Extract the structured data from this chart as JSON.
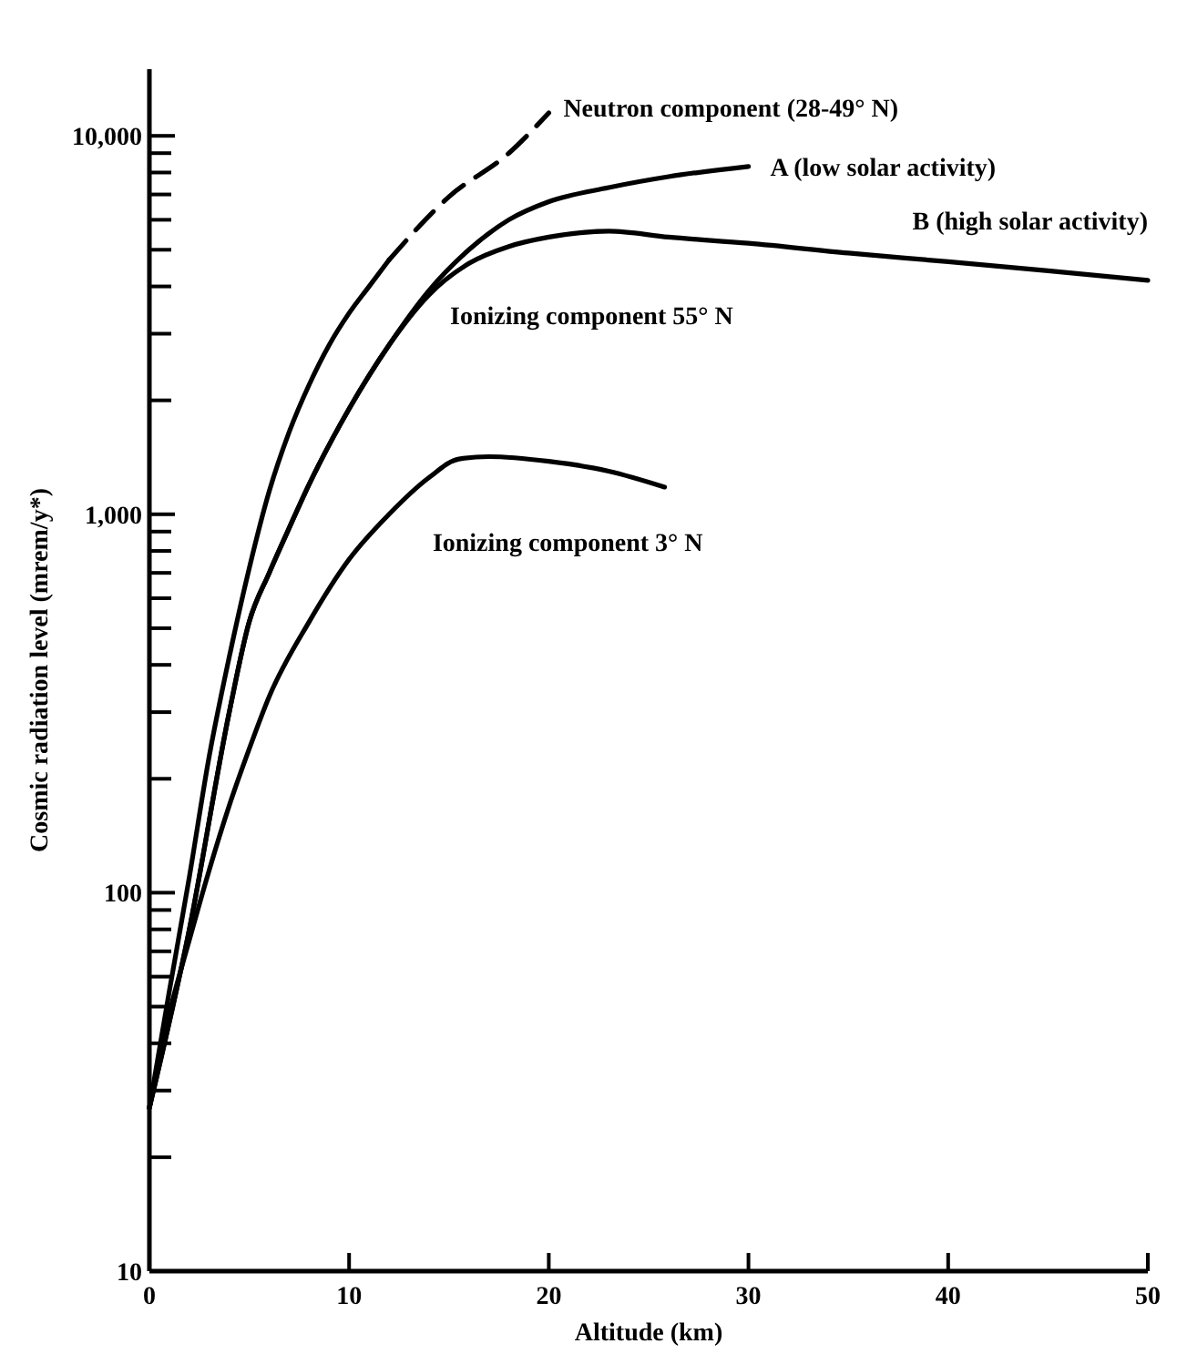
{
  "chart_data": {
    "type": "line",
    "xlabel": "Altitude (km)",
    "ylabel": "Cosmic radiation level (mrem/y*)",
    "log": "y",
    "grid": false,
    "xlim": [
      0,
      50
    ],
    "xticks": [
      0,
      10,
      20,
      30,
      40,
      50
    ],
    "ylim": [
      10,
      15000
    ],
    "yticks": [
      {
        "value": 10,
        "label": "10"
      },
      {
        "value": 20,
        "label": null
      },
      {
        "value": 30,
        "label": null
      },
      {
        "value": 40,
        "label": null
      },
      {
        "value": 50,
        "label": null
      },
      {
        "value": 60,
        "label": null
      },
      {
        "value": 70,
        "label": null
      },
      {
        "value": 80,
        "label": null
      },
      {
        "value": 90,
        "label": null
      },
      {
        "value": 100,
        "label": "100"
      },
      {
        "value": 200,
        "label": null
      },
      {
        "value": 300,
        "label": null
      },
      {
        "value": 400,
        "label": null
      },
      {
        "value": 500,
        "label": null
      },
      {
        "value": 600,
        "label": null
      },
      {
        "value": 700,
        "label": null
      },
      {
        "value": 800,
        "label": null
      },
      {
        "value": 900,
        "label": null
      },
      {
        "value": 1000,
        "label": "1,000"
      },
      {
        "value": 2000,
        "label": null
      },
      {
        "value": 3000,
        "label": null
      },
      {
        "value": 4000,
        "label": null
      },
      {
        "value": 5000,
        "label": null
      },
      {
        "value": 6000,
        "label": null
      },
      {
        "value": 7000,
        "label": null
      },
      {
        "value": 8000,
        "label": null
      },
      {
        "value": 9000,
        "label": null
      },
      {
        "value": 10000,
        "label": "10,000"
      }
    ],
    "annotations": [
      "Ionizing component 55° N"
    ],
    "series": [
      {
        "color": "#000000",
        "line_style": "solid",
        "x": [
          0,
          1,
          2,
          3,
          4,
          5,
          6,
          7,
          8,
          9,
          10,
          11,
          12
        ],
        "values": [
          27,
          55,
          110,
          230,
          420,
          720,
          1150,
          1650,
          2200,
          2800,
          3400,
          4000,
          4700
        ]
      },
      {
        "name": "Neutron component (28-49° N)",
        "color": "#000000",
        "line_style": "dashed",
        "x": [
          12,
          15,
          18,
          20
        ],
        "values": [
          4700,
          6900,
          9000,
          11500
        ]
      },
      {
        "name": "A (low solar activity)",
        "color": "#000000",
        "line_style": "solid",
        "x": [
          0,
          2,
          4,
          5,
          6,
          7,
          8,
          10,
          12,
          14,
          16,
          18,
          20,
          23,
          26,
          30
        ],
        "values": [
          27,
          80,
          300,
          520,
          700,
          920,
          1200,
          1900,
          2800,
          3900,
          5000,
          6000,
          6700,
          7300,
          7800,
          8300
        ]
      },
      {
        "name": "B (high solar activity)",
        "color": "#000000",
        "line_style": "solid",
        "x": [
          0,
          2,
          4,
          5,
          6,
          7,
          8,
          10,
          12,
          14,
          16,
          18,
          20,
          23,
          26,
          30,
          35,
          40,
          45,
          50
        ],
        "values": [
          27,
          80,
          300,
          520,
          700,
          920,
          1200,
          1900,
          2800,
          3800,
          4600,
          5100,
          5400,
          5600,
          5400,
          5200,
          4900,
          4650,
          4400,
          4150
        ]
      },
      {
        "name": "Ionizing component 3° N",
        "color": "#000000",
        "line_style": "solid",
        "x": [
          0,
          1,
          2,
          3,
          4,
          5,
          6,
          8,
          10,
          12,
          14,
          15.5,
          17,
          20,
          23,
          25.8
        ],
        "values": [
          27,
          48,
          75,
          115,
          170,
          240,
          330,
          520,
          760,
          1000,
          1250,
          1400,
          1420,
          1380,
          1300,
          1180
        ]
      }
    ]
  }
}
